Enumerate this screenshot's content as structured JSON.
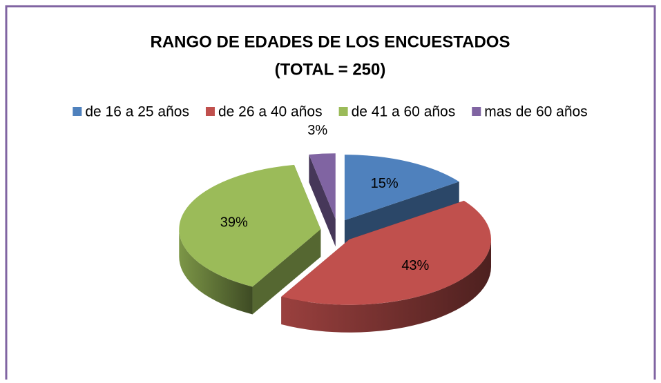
{
  "chart_data": {
    "type": "pie",
    "title": "RANGO DE EDADES DE LOS ENCUESTADOS",
    "subtitle": "(TOTAL = 250)",
    "categories": [
      "de 16 a 25 años",
      "de 26 a 40 años",
      "de 41 a 60 años",
      "mas de 60 años"
    ],
    "values": [
      15,
      43,
      39,
      3
    ],
    "value_labels": [
      "15%",
      "43%",
      "39%",
      "3%"
    ],
    "colors": [
      "#4f81bd",
      "#c0504d",
      "#9bbb59",
      "#8064a2"
    ],
    "legend": "top",
    "exploded": true,
    "3d": true
  }
}
